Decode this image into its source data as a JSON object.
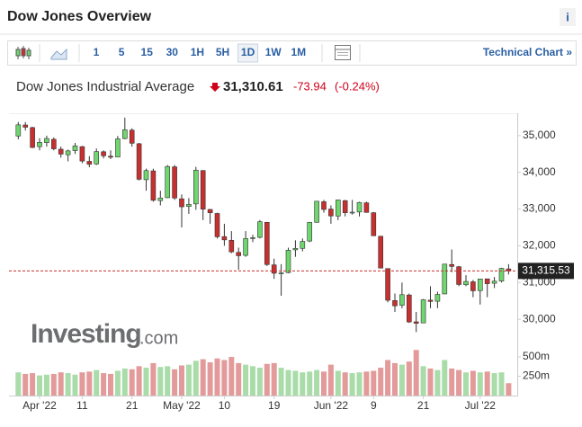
{
  "header": {
    "title": "Dow Jones Overview",
    "info": "i"
  },
  "toolbar": {
    "intervals": [
      "1",
      "5",
      "15",
      "30",
      "1H",
      "5H",
      "1D",
      "1W",
      "1M"
    ],
    "selected": "1D",
    "link": "Technical Chart »"
  },
  "quote": {
    "name": "Dow Jones Industrial Average",
    "price": "31,310.61",
    "change": "-73.94",
    "change_pct": "(-0.24%)"
  },
  "logo": {
    "brand": "Investing",
    "suffix": ".com"
  },
  "chart_data": {
    "type": "candlestick",
    "categories": [
      null,
      null,
      null,
      "Apr '22",
      null,
      null,
      null,
      null,
      null,
      "11",
      null,
      null,
      null,
      null,
      null,
      null,
      "21",
      null,
      null,
      null,
      null,
      null,
      null,
      "May '22",
      null,
      null,
      null,
      null,
      null,
      "10",
      null,
      null,
      null,
      null,
      null,
      null,
      "19",
      null,
      null,
      null,
      null,
      null,
      null,
      null,
      "Jun '22",
      null,
      null,
      null,
      null,
      null,
      "9",
      null,
      null,
      null,
      null,
      null,
      null,
      "21",
      null,
      null,
      null,
      null,
      null,
      null,
      null,
      "Jul '22",
      null,
      null,
      null,
      null
    ],
    "open": [
      34990,
      35290,
      35220,
      34700,
      34810,
      34900,
      34630,
      34480,
      34590,
      34700,
      34300,
      34230,
      34560,
      34440,
      34420,
      34920,
      35150,
      34780,
      33800,
      34040,
      33230,
      33310,
      34150,
      33280,
      33070,
      33140,
      34050,
      32990,
      32880,
      32250,
      32150,
      31820,
      31740,
      32200,
      32230,
      32640,
      31480,
      31260,
      31270,
      31890,
      31930,
      32130,
      32640,
      33200,
      33000,
      32810,
      33230,
      32900,
      32920,
      33170,
      32900,
      32260,
      31380,
      30510,
      30380,
      30660,
      29930,
      29900,
      30520,
      30490,
      30690,
      31490,
      31430,
      30940,
      31020,
      30780,
      31100,
      30980,
      31040,
      31370
    ],
    "high": [
      35370,
      35370,
      35240,
      34930,
      35000,
      34950,
      34700,
      34620,
      34800,
      34720,
      34440,
      34650,
      34600,
      34600,
      34990,
      35490,
      35200,
      34800,
      34100,
      34100,
      33500,
      34200,
      34200,
      33400,
      33300,
      34150,
      34060,
      33000,
      32900,
      32600,
      32400,
      31950,
      32400,
      32300,
      32700,
      32650,
      31650,
      31500,
      31950,
      32150,
      32200,
      32650,
      33220,
      33250,
      33100,
      33260,
      33250,
      33250,
      33200,
      33200,
      32920,
      32270,
      31380,
      30700,
      31000,
      30700,
      30200,
      30550,
      30900,
      30750,
      31510,
      31900,
      31450,
      31200,
      31070,
      31100,
      31100,
      31150,
      31400,
      31500
    ],
    "low": [
      34900,
      35140,
      34660,
      34600,
      34700,
      34600,
      34400,
      34300,
      34500,
      34250,
      34140,
      34200,
      34380,
      34360,
      34410,
      34900,
      34700,
      33780,
      33500,
      33200,
      33100,
      33300,
      33250,
      32500,
      32870,
      32980,
      32700,
      32600,
      32200,
      32000,
      31800,
      31350,
      31700,
      32100,
      32200,
      31450,
      31100,
      30640,
      31250,
      31700,
      31850,
      32100,
      32630,
      32900,
      32600,
      32700,
      32800,
      32850,
      32800,
      32900,
      32270,
      31390,
      30460,
      30200,
      30300,
      29900,
      29650,
      29900,
      30300,
      30300,
      30680,
      31280,
      30900,
      30900,
      30600,
      30400,
      30600,
      30850,
      31000,
      31220
    ],
    "close": [
      35294,
      35229,
      34678,
      34818,
      34922,
      34641,
      34497,
      34584,
      34721,
      34308,
      34220,
      34565,
      34451,
      34412,
      34911,
      35160,
      34793,
      33811,
      34049,
      33240,
      33302,
      34160,
      33301,
      33062,
      33129,
      34061,
      32998,
      32899,
      32246,
      32161,
      31834,
      31730,
      32197,
      32223,
      32655,
      31490,
      31253,
      31262,
      31880,
      31929,
      32120,
      32637,
      33213,
      32990,
      32813,
      33248,
      32900,
      32916,
      33180,
      32910,
      32273,
      31393,
      30517,
      30365,
      30669,
      29927,
      29889,
      30530,
      30484,
      30677,
      31501,
      31439,
      30947,
      31029,
      30775,
      31097,
      30968,
      31037,
      31385,
      31316
    ],
    "volume": [
      300,
      280,
      290,
      260,
      270,
      280,
      300,
      290,
      270,
      300,
      310,
      330,
      290,
      280,
      320,
      350,
      340,
      380,
      360,
      420,
      370,
      380,
      340,
      390,
      400,
      450,
      470,
      430,
      480,
      460,
      500,
      420,
      400,
      380,
      360,
      410,
      420,
      360,
      330,
      320,
      300,
      310,
      330,
      310,
      400,
      320,
      300,
      290,
      300,
      310,
      320,
      360,
      460,
      420,
      400,
      440,
      590,
      380,
      350,
      330,
      460,
      350,
      330,
      300,
      320,
      300,
      310,
      290,
      300,
      160
    ],
    "up_color": "#6fd66f",
    "down_color": "#c8302f",
    "up_volume_color": "#a9dca9",
    "down_volume_color": "#e39a9a",
    "ylim": [
      29440,
      35560
    ],
    "yticks": [
      {
        "value": 30000,
        "label": "30,000"
      },
      {
        "value": 31000,
        "label": "31,000"
      },
      {
        "value": 32000,
        "label": "32,000"
      },
      {
        "value": 33000,
        "label": "33,000"
      },
      {
        "value": 34000,
        "label": "34,000"
      },
      {
        "value": 35000,
        "label": "35,000"
      }
    ],
    "y2lim": [
      0,
      640
    ],
    "y2ticks": [
      {
        "value": 250,
        "label": "250m"
      },
      {
        "value": 500,
        "label": "500m"
      }
    ],
    "last_price": {
      "value": 31315.53,
      "label": "31,315.53"
    }
  }
}
